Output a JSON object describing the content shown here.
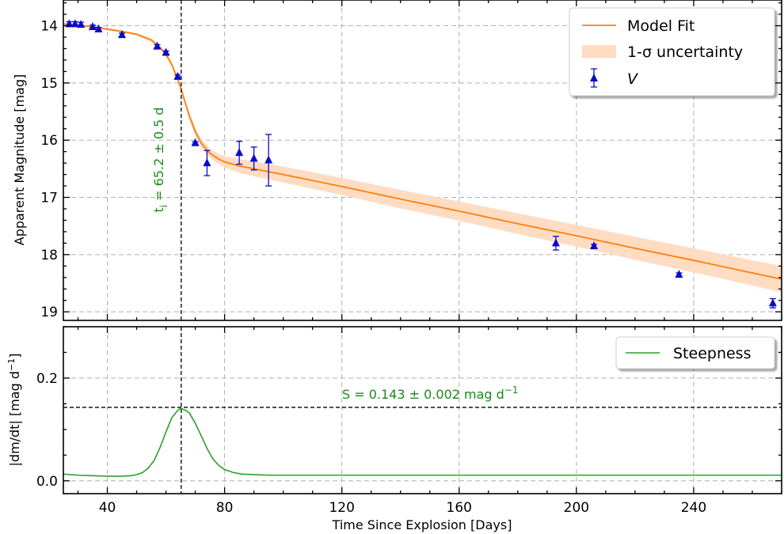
{
  "chart_data": [
    {
      "panel": "top",
      "type": "scatter",
      "xlabel": "",
      "ylabel": "Apparent Magnitude [mag]",
      "xlim": [
        25,
        270
      ],
      "ylim": [
        19.15,
        13.55
      ],
      "y_inverted": true,
      "y_ticks": [
        14,
        15,
        16,
        17,
        18,
        19
      ],
      "y_tick_labels": [
        "14",
        "15",
        "16",
        "17",
        "18",
        "19"
      ],
      "grid": true,
      "legend_position": "top-right",
      "legend": {
        "model": "Model Fit",
        "band": "1-σ uncertainty",
        "points": "V"
      },
      "colors": {
        "model": "#ff7f0e",
        "band": "#ffdcc2",
        "points": "#0a0acc",
        "vline": "#000000"
      },
      "series": [
        {
          "name": "V",
          "kind": "points",
          "x": [
            27,
            29,
            31,
            35,
            37,
            45,
            57,
            60,
            64,
            70,
            74,
            85,
            90,
            95,
            193,
            206,
            235,
            267
          ],
          "y": [
            13.97,
            13.97,
            13.98,
            14.02,
            14.06,
            14.16,
            14.36,
            14.47,
            14.89,
            16.05,
            16.4,
            16.22,
            16.32,
            16.35,
            17.8,
            17.85,
            18.35,
            18.85
          ],
          "yerr": [
            0.04,
            0.04,
            0.04,
            0.03,
            0.03,
            0.03,
            0.03,
            0.03,
            0.03,
            0.02,
            0.22,
            0.2,
            0.2,
            0.45,
            0.12,
            0.03,
            0.03,
            0.08
          ]
        },
        {
          "name": "Model Fit",
          "kind": "line",
          "x": [
            25,
            30,
            35,
            40,
            45,
            50,
            55,
            58,
            60,
            62,
            64,
            65,
            66,
            68,
            70,
            72,
            75,
            78,
            80,
            85,
            90,
            100,
            120,
            140,
            160,
            180,
            200,
            220,
            240,
            260,
            270
          ],
          "y": [
            13.97,
            13.99,
            14.02,
            14.06,
            14.1,
            14.15,
            14.25,
            14.38,
            14.5,
            14.68,
            14.93,
            15.08,
            15.25,
            15.58,
            15.85,
            16.05,
            16.23,
            16.33,
            16.38,
            16.45,
            16.5,
            16.6,
            16.81,
            17.03,
            17.24,
            17.46,
            17.67,
            17.89,
            18.1,
            18.32,
            18.43
          ],
          "band": [
            0.02,
            0.02,
            0.02,
            0.02,
            0.02,
            0.02,
            0.03,
            0.03,
            0.04,
            0.04,
            0.05,
            0.05,
            0.05,
            0.06,
            0.07,
            0.08,
            0.08,
            0.09,
            0.1,
            0.12,
            0.13,
            0.14,
            0.15,
            0.16,
            0.17,
            0.18,
            0.19,
            0.2,
            0.21,
            0.22,
            0.23
          ]
        }
      ],
      "vline": {
        "x": 65.2,
        "label_base": "t",
        "label_sub": "i",
        "label_rest": " = 65.2 ± 0.5 d"
      }
    },
    {
      "panel": "bottom",
      "type": "line",
      "xlabel": "Time Since Explosion [Days]",
      "ylabel": "|dm/dt| [mag d",
      "ylabel_sup": "−1",
      "ylabel_close": "]",
      "xlim": [
        25,
        270
      ],
      "ylim": [
        -0.025,
        0.3
      ],
      "x_ticks": [
        40,
        80,
        120,
        160,
        200,
        240
      ],
      "x_tick_labels": [
        "40",
        "80",
        "120",
        "160",
        "200",
        "240"
      ],
      "y_ticks": [
        0.0,
        0.2
      ],
      "y_tick_labels": [
        "0.0",
        "0.2"
      ],
      "grid": true,
      "legend_position": "top-right",
      "legend": {
        "steepness": "Steepness"
      },
      "colors": {
        "steepness": "#2ca02c",
        "hline": "#000000"
      },
      "series": [
        {
          "name": "Steepness",
          "x": [
            25,
            30,
            35,
            40,
            45,
            48,
            50,
            52,
            54,
            56,
            58,
            60,
            62,
            64,
            65,
            66,
            67,
            68,
            70,
            72,
            74,
            76,
            78,
            80,
            83,
            86,
            90,
            95,
            100,
            120,
            150,
            200,
            270
          ],
          "y": [
            0.013,
            0.011,
            0.01,
            0.009,
            0.009,
            0.01,
            0.012,
            0.016,
            0.025,
            0.04,
            0.065,
            0.095,
            0.123,
            0.137,
            0.141,
            0.139,
            0.136,
            0.132,
            0.112,
            0.088,
            0.063,
            0.043,
            0.03,
            0.022,
            0.016,
            0.013,
            0.012,
            0.011,
            0.011,
            0.011,
            0.011,
            0.011,
            0.011
          ]
        }
      ],
      "hline": {
        "y": 0.143,
        "label_main": "S = 0.143 ± 0.002 mag d",
        "label_sup": "−1"
      },
      "vline": {
        "x": 65.2
      }
    }
  ]
}
